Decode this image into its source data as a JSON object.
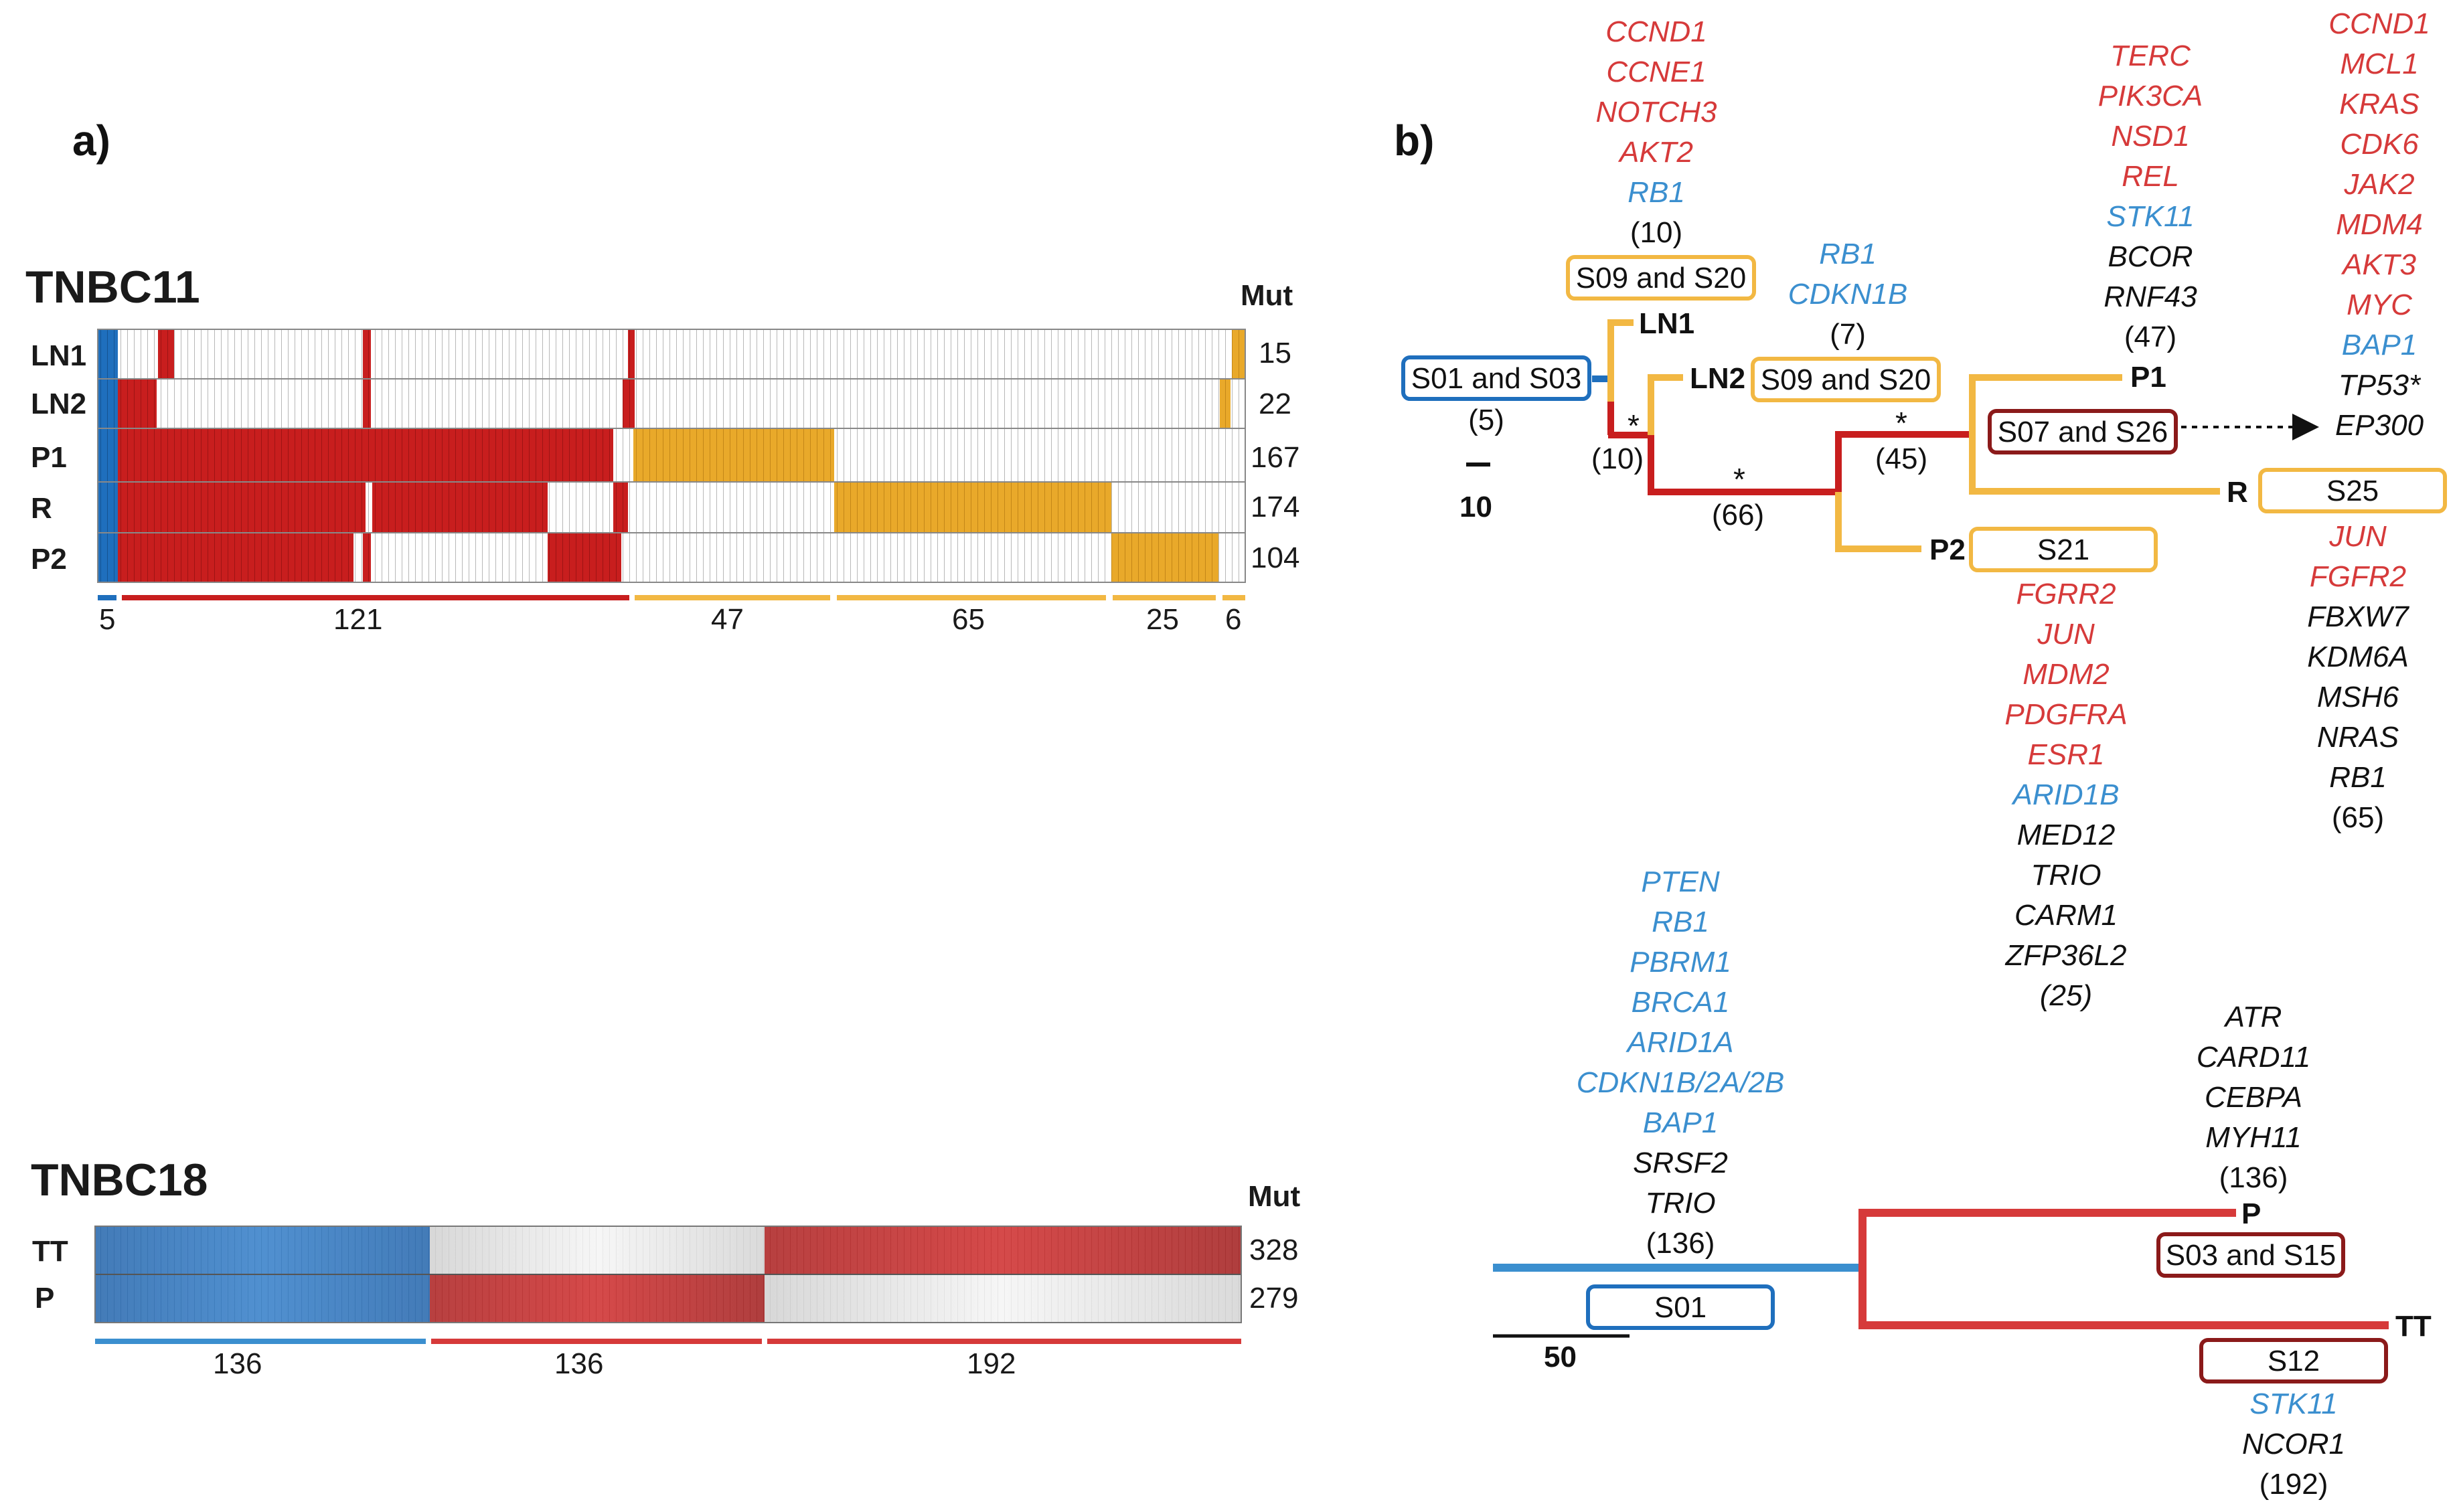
{
  "colors": {
    "blue": "#1f6fbd",
    "red": "#c81e1e",
    "orange": "#e9a92a",
    "lightorange": "#f2b843",
    "darkred": "#8b1a1a",
    "grey": "#cfcfcf",
    "geneRed": "#d63a3a",
    "geneBlue": "#3b8fcf",
    "black": "#111111"
  },
  "panel_a": {
    "label": "a)",
    "tnbc11": {
      "title": "TNBC11",
      "mut_header": "Mut",
      "rows": [
        {
          "label": "LN1",
          "mut": "15"
        },
        {
          "label": "LN2",
          "mut": "22"
        },
        {
          "label": "P1",
          "mut": "167"
        },
        {
          "label": "R",
          "mut": "174"
        },
        {
          "label": "P2",
          "mut": "104"
        }
      ],
      "groups": [
        "5",
        "121",
        "47",
        "65",
        "25",
        "6"
      ]
    },
    "tnbc18": {
      "title": "TNBC18",
      "mut_header": "Mut",
      "rows": [
        {
          "label": "TT",
          "mut": "328"
        },
        {
          "label": "P",
          "mut": "279"
        }
      ],
      "groups": [
        "136",
        "136",
        "192"
      ]
    }
  },
  "panel_b": {
    "label": "b)",
    "tnbc11_tree": {
      "scale": "10",
      "trunk_box": "S01 and S03",
      "trunk_count": "(5)",
      "ln_branch_count": "(10)",
      "main_branch_count": "(66)",
      "p1r_branch_count": "(45)",
      "star": "*",
      "ln1_genes_red": [
        "CCND1",
        "CCNE1",
        "NOTCH3",
        "AKT2"
      ],
      "ln1_genes_blue": [
        "RB1"
      ],
      "ln1_count": "(10)",
      "ln1_box": "S09 and S20",
      "ln1_node": "LN1",
      "ln2_genes_blue": [
        "RB1",
        "CDKN1B"
      ],
      "ln2_count": "(7)",
      "ln2_node": "LN2",
      "ln2_box": "S09 and S20",
      "p1_genes_red": [
        "TERC",
        "PIK3CA",
        "NSD1",
        "REL"
      ],
      "p1_genes_blue": [
        "STK11"
      ],
      "p1_genes_black": [
        "BCOR",
        "RNF43"
      ],
      "p1_count": "(47)",
      "p1_node": "P1",
      "p1r_box": "S07 and S26",
      "r_top_red": [
        "CCND1",
        "MCL1",
        "KRAS",
        "CDK6",
        "JAK2",
        "MDM4",
        "AKT3",
        "MYC"
      ],
      "r_top_blue": [
        "BAP1"
      ],
      "r_top_black": [
        "TP53*",
        "EP300"
      ],
      "r_node": "R",
      "r_box": "S25",
      "r_genes_red": [
        "JUN",
        "FGFR2"
      ],
      "r_genes_black": [
        "FBXW7",
        "KDM6A",
        "MSH6",
        "NRAS",
        "RB1"
      ],
      "r_count": "(65)",
      "p2_node": "P2",
      "p2_box": "S21",
      "p2_genes_red": [
        "FGRR2",
        "JUN",
        "MDM2",
        "PDGFRA",
        "ESR1"
      ],
      "p2_genes_blue": [
        "ARID1B"
      ],
      "p2_genes_black": [
        "MED12",
        "TRIO",
        "CARM1",
        "ZFP36L2"
      ],
      "p2_count": "(25)"
    },
    "tnbc18_tree": {
      "scale": "50",
      "trunk_genes_blue": [
        "PTEN",
        "RB1",
        "PBRM1",
        "BRCA1",
        "ARID1A",
        "CDKN1B/2A/2B",
        "BAP1"
      ],
      "trunk_genes_black": [
        "SRSF2",
        "TRIO"
      ],
      "trunk_count": "(136)",
      "trunk_box": "S01",
      "p_genes_black": [
        "ATR",
        "CARD11",
        "CEBPA",
        "MYH11"
      ],
      "p_count": "(136)",
      "p_node": "P",
      "p_box": "S03 and S15",
      "tt_node": "TT",
      "tt_box": "S12",
      "tt_genes_blue": [
        "STK11"
      ],
      "tt_genes_black": [
        "NCOR1"
      ],
      "tt_count": "(192)"
    }
  }
}
